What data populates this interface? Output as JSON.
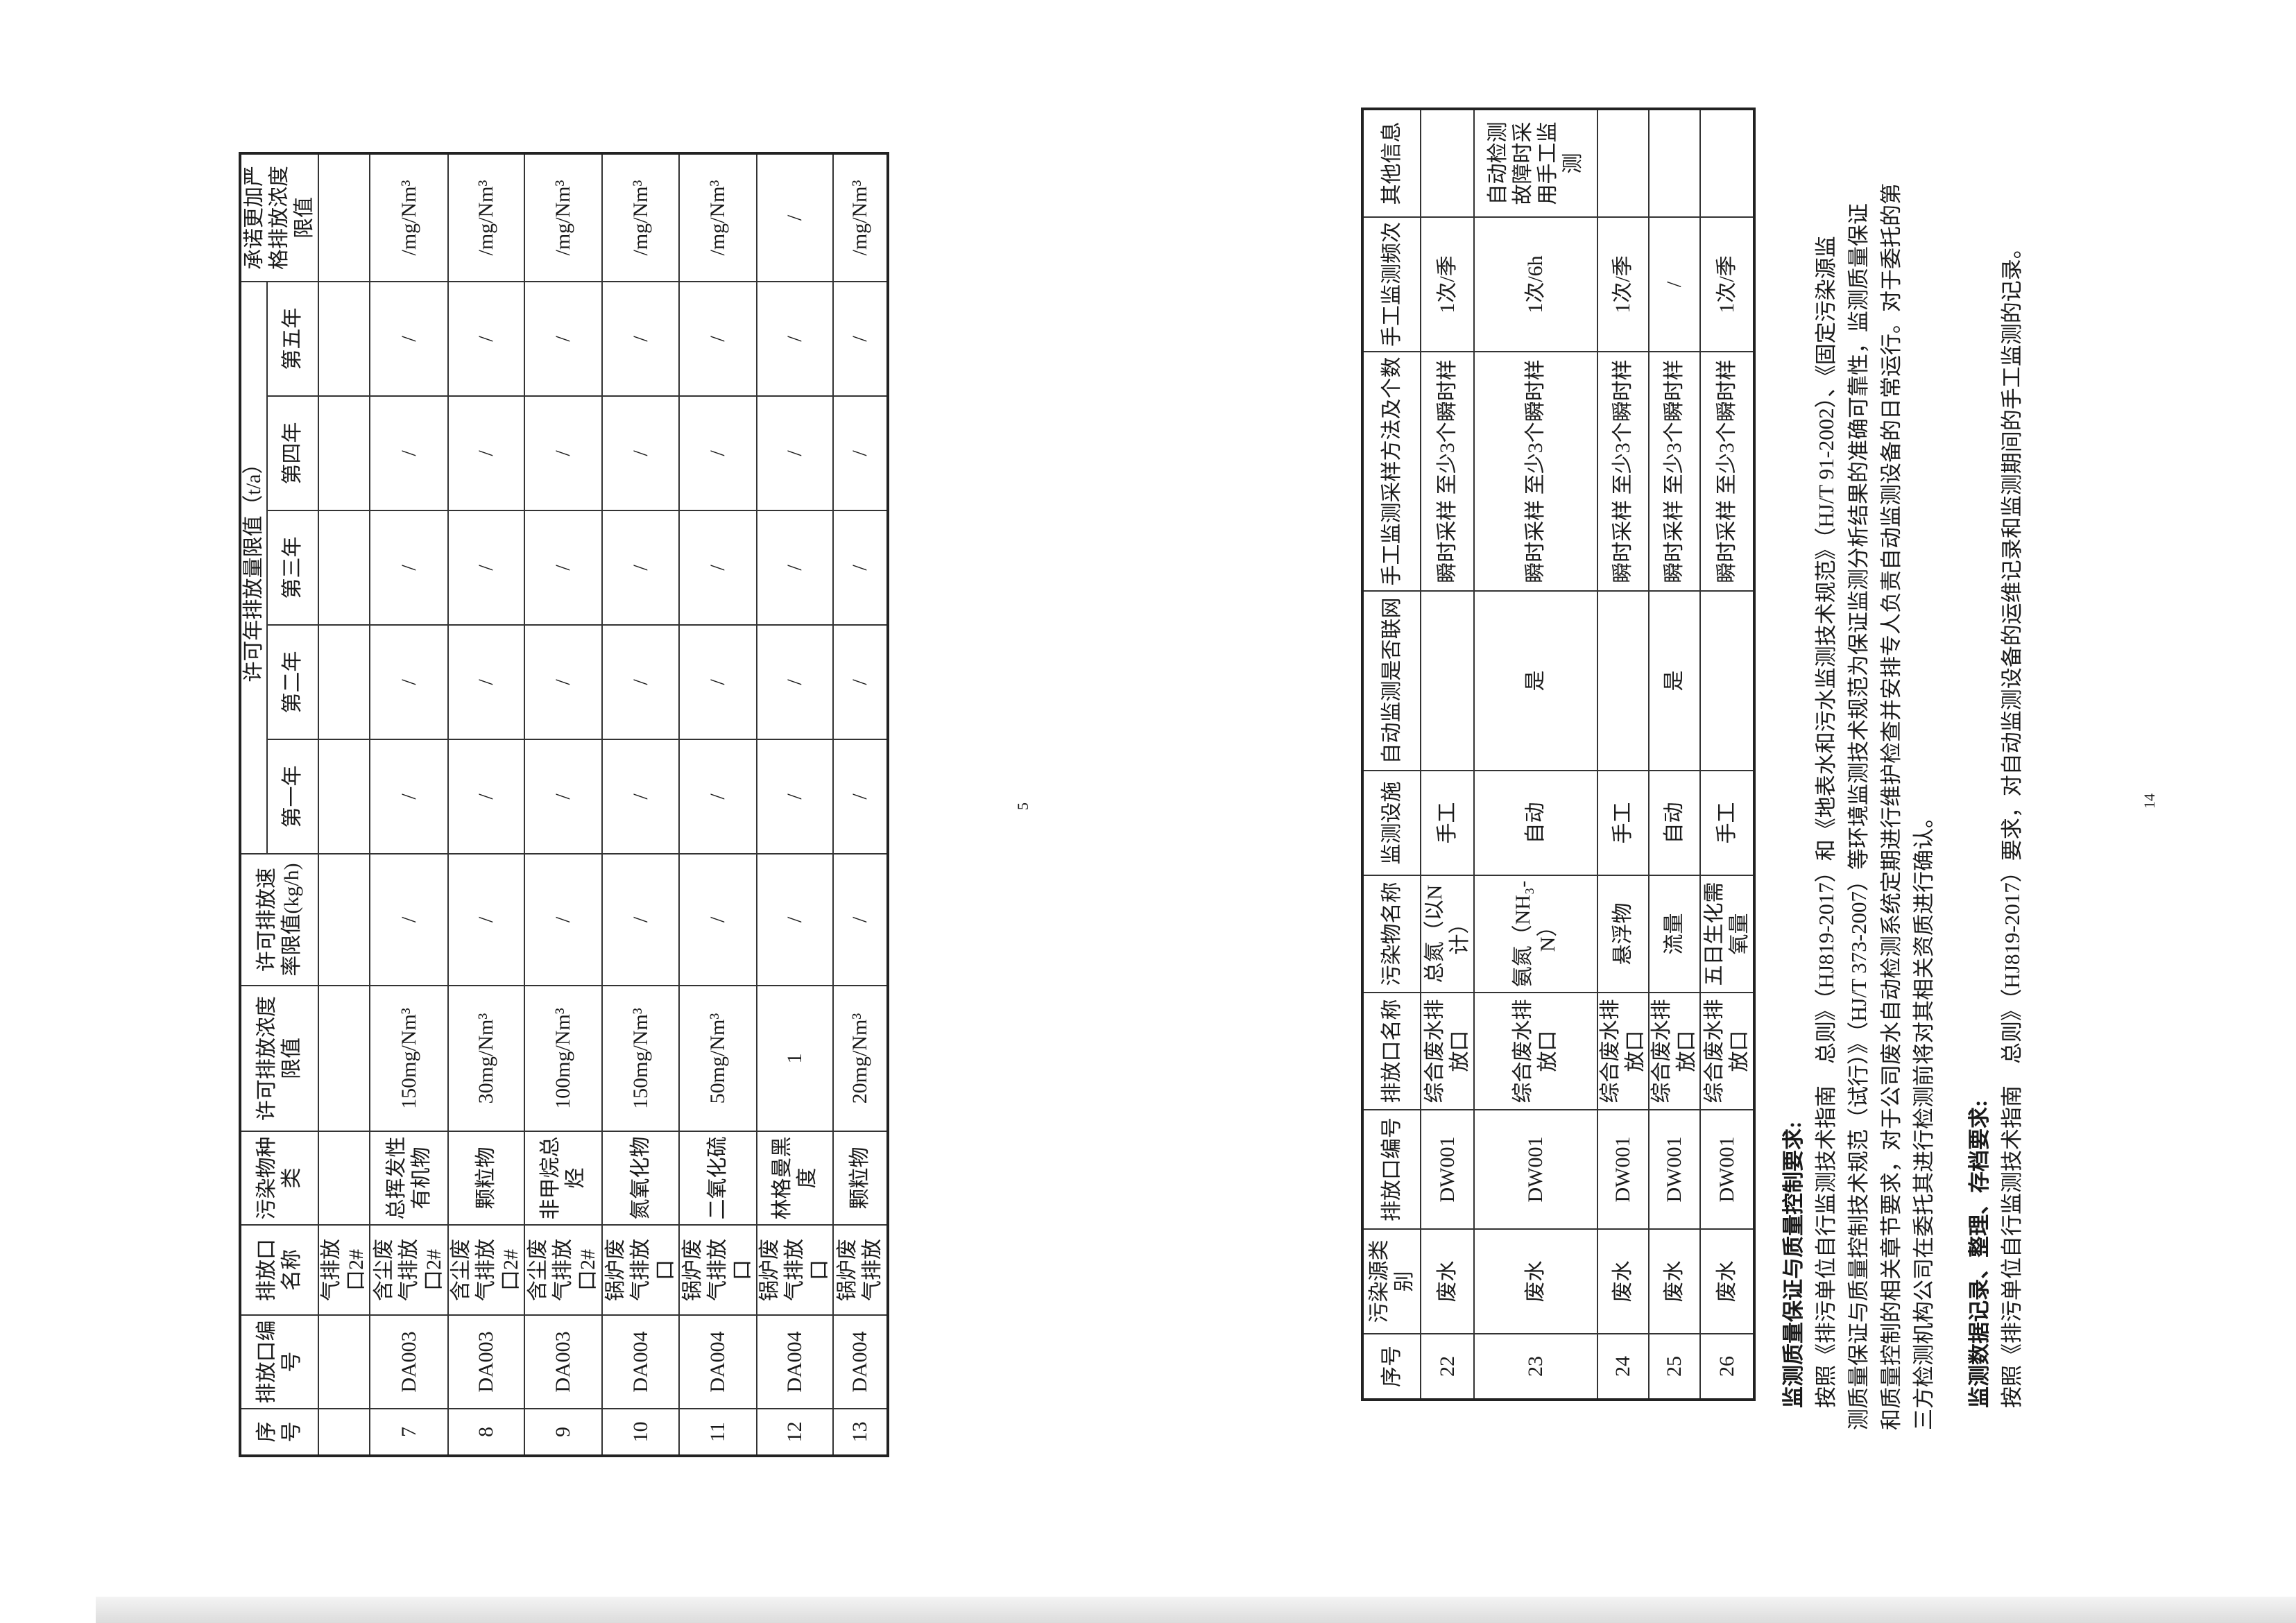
{
  "left_page": {
    "page_number": "5",
    "headers": {
      "seq": "序号",
      "outlet_id": "排放口编号",
      "outlet_name": "排放口名称",
      "pollutant": "污染物种类",
      "conc_limit": "许可排放浓度限值",
      "rate_limit": "许可排放速率限值(kg/h)",
      "annual_group": "许可年排放量限值（t/a）",
      "years": [
        "第一年",
        "第二年",
        "第三年",
        "第四年",
        "第五年"
      ],
      "stricter": "承诺更加严格排放浓度限值"
    },
    "rows": [
      [
        "",
        "",
        "气排放口2#",
        "",
        "",
        "",
        "",
        "",
        "",
        "",
        "",
        ""
      ],
      [
        "7",
        "DA003",
        "含尘废气排放口2#",
        "总挥发性有机物",
        "150mg/Nm³",
        "/",
        "/",
        "/",
        "/",
        "/",
        "/",
        "/mg/Nm³"
      ],
      [
        "8",
        "DA003",
        "含尘废气排放口2#",
        "颗粒物",
        "30mg/Nm³",
        "/",
        "/",
        "/",
        "/",
        "/",
        "/",
        "/mg/Nm³"
      ],
      [
        "9",
        "DA003",
        "含尘废气排放口2#",
        "非甲烷总烃",
        "100mg/Nm³",
        "/",
        "/",
        "/",
        "/",
        "/",
        "/",
        "/mg/Nm³"
      ],
      [
        "10",
        "DA004",
        "锅炉废气排放口",
        "氮氧化物",
        "150mg/Nm³",
        "/",
        "/",
        "/",
        "/",
        "/",
        "/",
        "/mg/Nm³"
      ],
      [
        "11",
        "DA004",
        "锅炉废气排放口",
        "二氧化硫",
        "50mg/Nm³",
        "/",
        "/",
        "/",
        "/",
        "/",
        "/",
        "/mg/Nm³"
      ],
      [
        "12",
        "DA004",
        "锅炉废气排放口",
        "林格曼黑度",
        "1",
        "/",
        "/",
        "/",
        "/",
        "/",
        "/",
        "/"
      ],
      [
        "13",
        "DA004",
        "锅炉废气排放",
        "颗粒物",
        "20mg/Nm³",
        "/",
        "/",
        "/",
        "/",
        "/",
        "/",
        "/mg/Nm³"
      ]
    ]
  },
  "right_page": {
    "page_number": "14",
    "headers": [
      "序号",
      "污染源类别",
      "排放口编号",
      "排放口名称",
      "污染物名称",
      "监测设施",
      "自动监测是否联网",
      "手工监测采样方法及个数",
      "手工监测频次",
      "其他信息"
    ],
    "rows": [
      [
        "22",
        "废水",
        "DW001",
        "综合废水排放口",
        "总氮（以N计）",
        "手工",
        "",
        "瞬时采样 至少3个瞬时样",
        "1次/季",
        ""
      ],
      [
        "23",
        "废水",
        "DW001",
        "综合废水排放口",
        "氨氮（NH₃-N）",
        "自动",
        "是",
        "瞬时采样 至少3个瞬时样",
        "1次/6h",
        "自动检测故障时采用手工监测"
      ],
      [
        "24",
        "废水",
        "DW001",
        "综合废水排放口",
        "悬浮物",
        "手工",
        "",
        "瞬时采样 至少3个瞬时样",
        "1次/季",
        ""
      ],
      [
        "25",
        "废水",
        "DW001",
        "综合废水排放口",
        "流量",
        "自动",
        "是",
        "瞬时采样 至少3个瞬时样",
        "/",
        ""
      ],
      [
        "26",
        "废水",
        "DW001",
        "综合废水排放口",
        "五日生化需氧量",
        "手工",
        "",
        "瞬时采样 至少3个瞬时样",
        "1次/季",
        ""
      ]
    ],
    "qa_heading": "监测质量保证与质量控制要求:",
    "qa_lines": [
      "按照《排污单位自行监测技术指南　总则》（HJ819-2017）和《地表水和污水监测技术规范》（HJ/T 91-2002）、《固定污染源监",
      "测质量保证与质量控制技术规范（试行）》（HJ/T 373-2007）等环境监测技术规范为保证监测分析结果的准确可靠性，监测质量保证",
      "和质量控制的相关章节要求，对于公司废水自动检测系统定期进行维护检查并安排专人负责自动监测设备的日常运行。对于委托的第",
      "三方检测机构公司在委托其进行检测前将对其相关资质进行确认。"
    ],
    "records_heading": "监测数据记录、整理、存档要求:",
    "records_line": "按照《排污单位自行监测技术指南　总则》（HJ819-2017）要求，对自动监测设备的运维记录和监测期间的手工监测的记录。"
  }
}
